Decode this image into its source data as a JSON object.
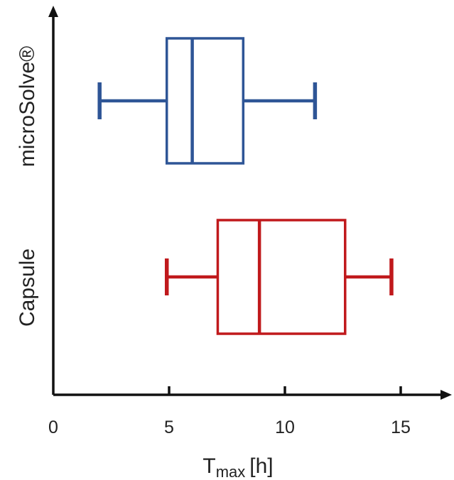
{
  "chart_data": {
    "type": "boxplot",
    "orientation": "horizontal",
    "x_ticks": [
      "0",
      "5",
      "10",
      "15"
    ],
    "xlim": [
      0,
      16.5
    ],
    "xlabel": {
      "main": "T",
      "sub": "max",
      "unit": "[h]"
    },
    "categories": [
      "microSolve®",
      "Capsule"
    ],
    "series": [
      {
        "name": "microSolve®",
        "color": "#2e5596",
        "min": 2.0,
        "q1": 4.9,
        "median": 6.0,
        "q3": 8.2,
        "max": 11.3
      },
      {
        "name": "Capsule",
        "color": "#c0191c",
        "min": 4.9,
        "q1": 7.1,
        "median": 8.9,
        "q3": 12.6,
        "max": 14.6
      }
    ],
    "grid": false,
    "legend": "none",
    "axis_color": "#111111"
  }
}
